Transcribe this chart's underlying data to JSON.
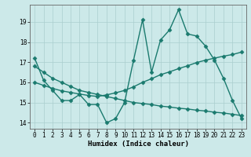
{
  "x": [
    0,
    1,
    2,
    3,
    4,
    5,
    6,
    7,
    8,
    9,
    10,
    11,
    12,
    13,
    14,
    15,
    16,
    17,
    18,
    19,
    20,
    21,
    22,
    23
  ],
  "line1": [
    17.2,
    16.1,
    15.6,
    15.1,
    15.1,
    15.4,
    14.9,
    14.9,
    14.0,
    14.2,
    15.0,
    17.1,
    19.1,
    16.5,
    18.1,
    18.6,
    19.6,
    18.4,
    18.3,
    17.8,
    17.1,
    16.2,
    15.1,
    14.2
  ],
  "line2": [
    16.0,
    15.85,
    15.7,
    15.58,
    15.5,
    15.42,
    15.35,
    15.3,
    15.38,
    15.48,
    15.6,
    15.78,
    16.0,
    16.18,
    16.38,
    16.52,
    16.68,
    16.82,
    16.98,
    17.1,
    17.2,
    17.3,
    17.38,
    17.5
  ],
  "line3": [
    16.8,
    16.5,
    16.2,
    16.0,
    15.8,
    15.6,
    15.5,
    15.4,
    15.3,
    15.2,
    15.1,
    15.0,
    14.95,
    14.9,
    14.82,
    14.78,
    14.72,
    14.68,
    14.62,
    14.58,
    14.52,
    14.48,
    14.42,
    14.35
  ],
  "bg_color": "#cce9e9",
  "line_color": "#1a7a6e",
  "grid_color": "#aacece",
  "xlabel": "Humidex (Indice chaleur)",
  "xlim": [
    -0.5,
    23.5
  ],
  "ylim": [
    13.7,
    19.85
  ],
  "yticks": [
    14,
    15,
    16,
    17,
    18,
    19
  ],
  "xticks": [
    0,
    1,
    2,
    3,
    4,
    5,
    6,
    7,
    8,
    9,
    10,
    11,
    12,
    13,
    14,
    15,
    16,
    17,
    18,
    19,
    20,
    21,
    22,
    23
  ],
  "xtick_labels": [
    "0",
    "1",
    "2",
    "3",
    "4",
    "5",
    "6",
    "7",
    "8",
    "9",
    "10",
    "11",
    "12",
    "13",
    "14",
    "15",
    "16",
    "17",
    "18",
    "19",
    "20",
    "21",
    "22",
    "23"
  ],
  "marker": "D",
  "markersize": 2.5,
  "linewidth": 1.0,
  "tick_fontsize": 5.5,
  "xlabel_fontsize": 6.5
}
